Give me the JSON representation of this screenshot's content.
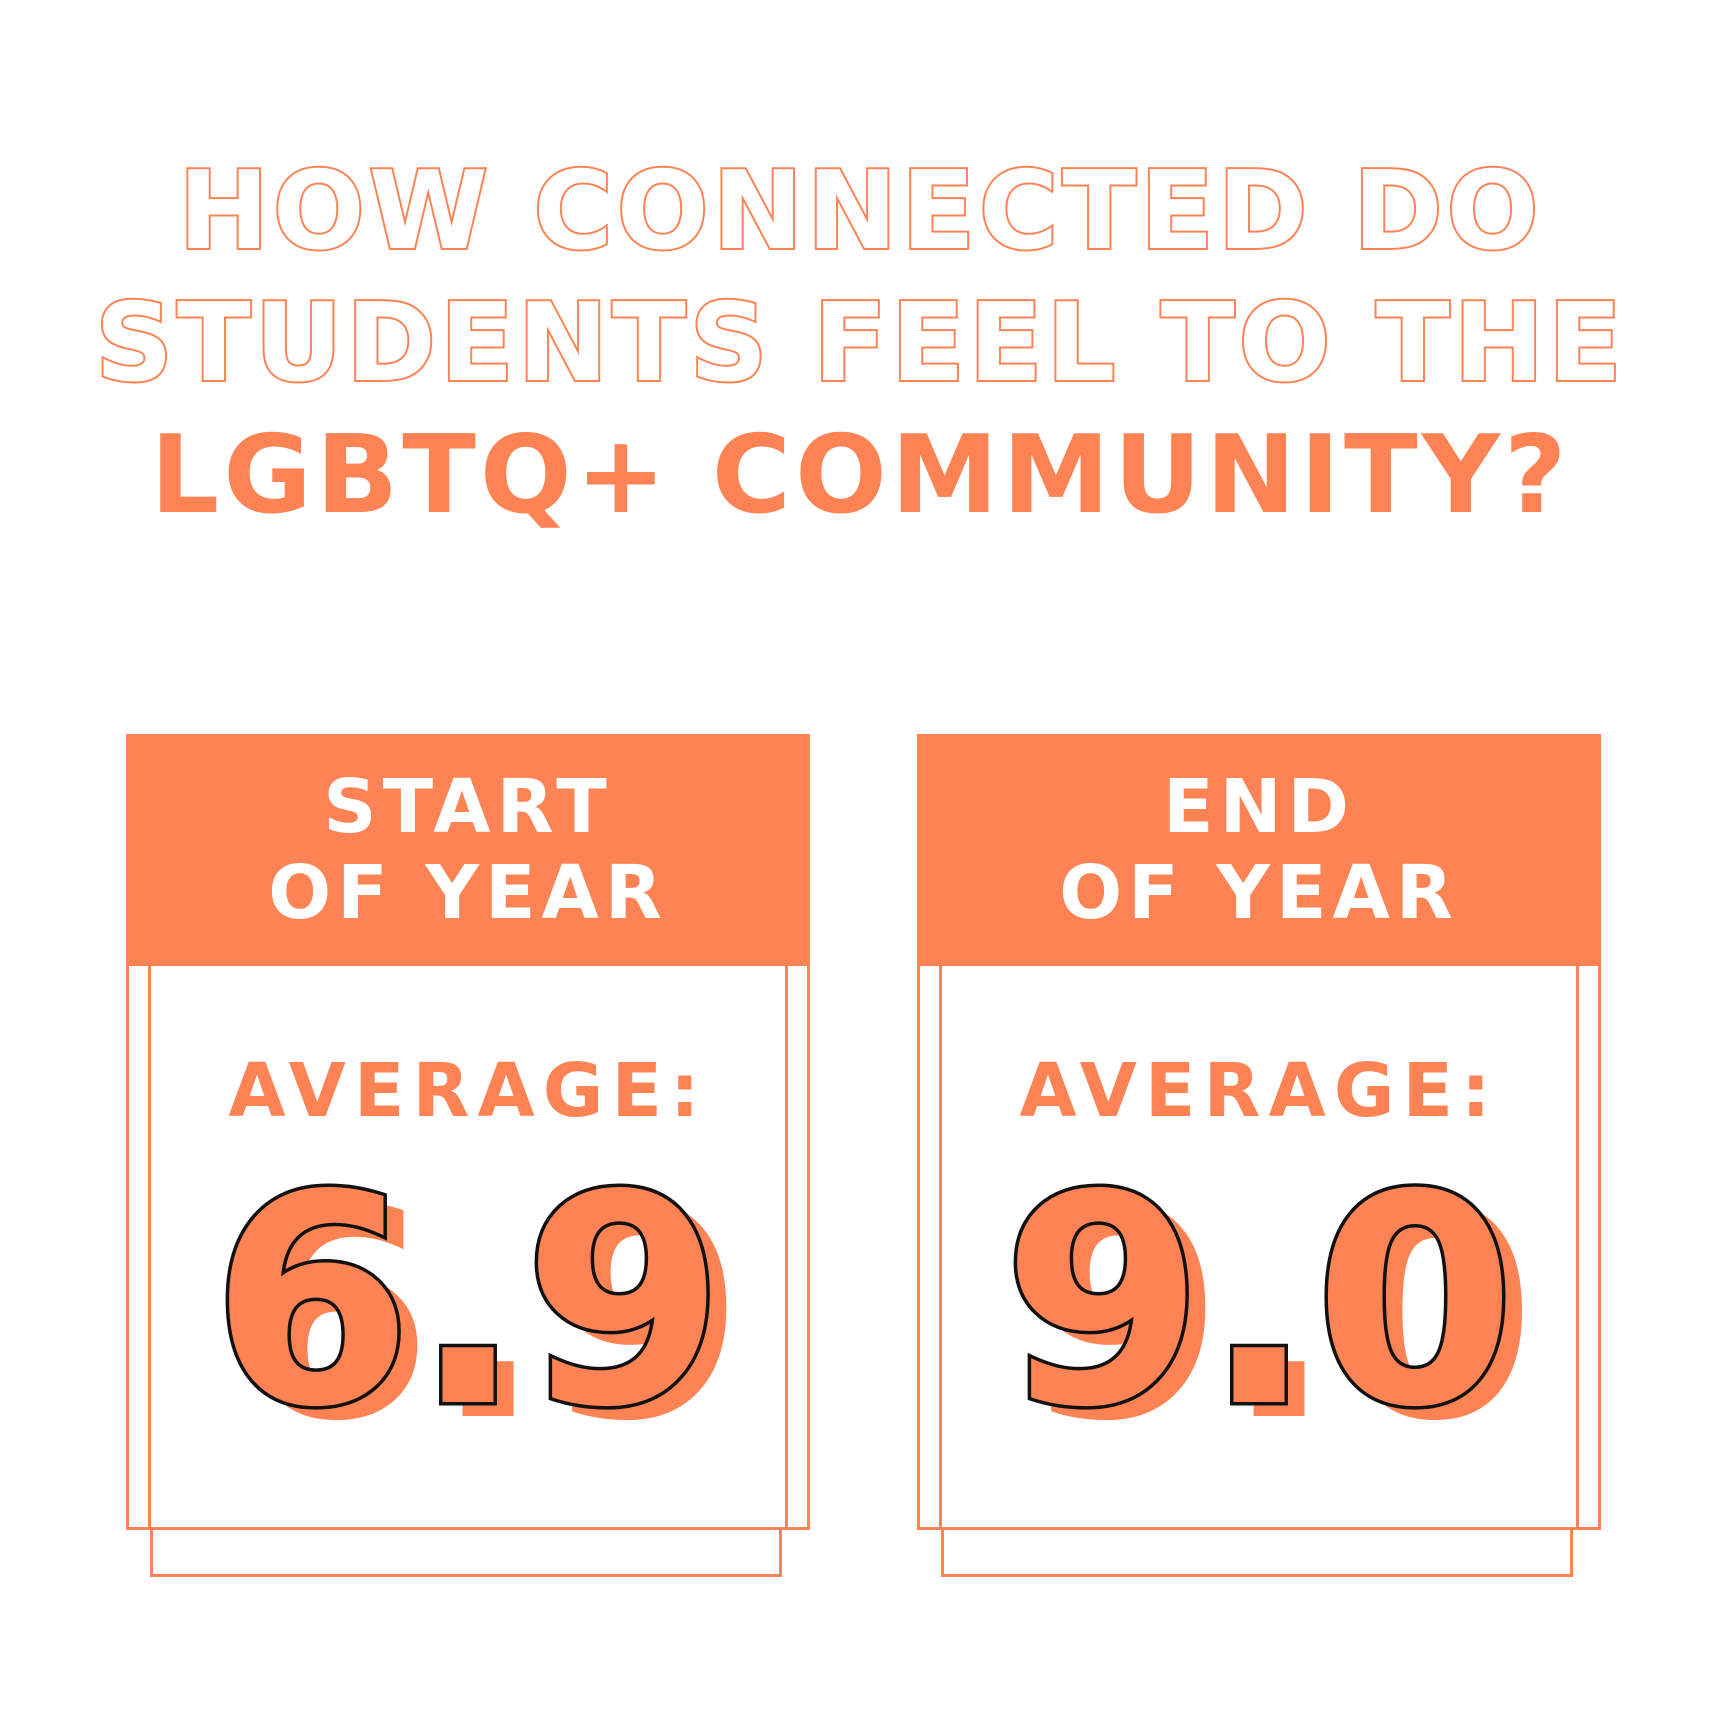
{
  "title": {
    "line1": "HOW CONNECTED DO",
    "line2": "STUDENTS FEEL TO THE",
    "line3": "LGBTQ+ COMMUNITY?"
  },
  "cards": [
    {
      "header_line1": "START",
      "header_line2": "OF YEAR",
      "average_label": "AVERAGE:",
      "average_value": "6.9"
    },
    {
      "header_line1": "END",
      "header_line2": "OF YEAR",
      "average_label": "AVERAGE:",
      "average_value": "9.0"
    }
  ],
  "colors": {
    "accent": "#fe8354",
    "outline_number": "#111111",
    "background": "#ffffff"
  }
}
